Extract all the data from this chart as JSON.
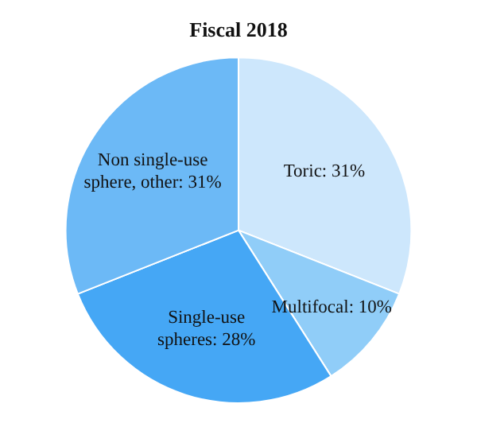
{
  "chart_data": {
    "type": "pie",
    "title": "Fiscal 2018",
    "categories": [
      "Toric",
      "Multifocal",
      "Single-use spheres",
      "Non single-use sphere, other"
    ],
    "values": [
      31,
      10,
      28,
      31
    ],
    "value_labels": [
      "31%",
      "10%",
      "28%",
      "31%"
    ],
    "colors": [
      "#cde7fc",
      "#90cdf8",
      "#45a7f5",
      "#6cb9f6"
    ],
    "legend": false
  }
}
